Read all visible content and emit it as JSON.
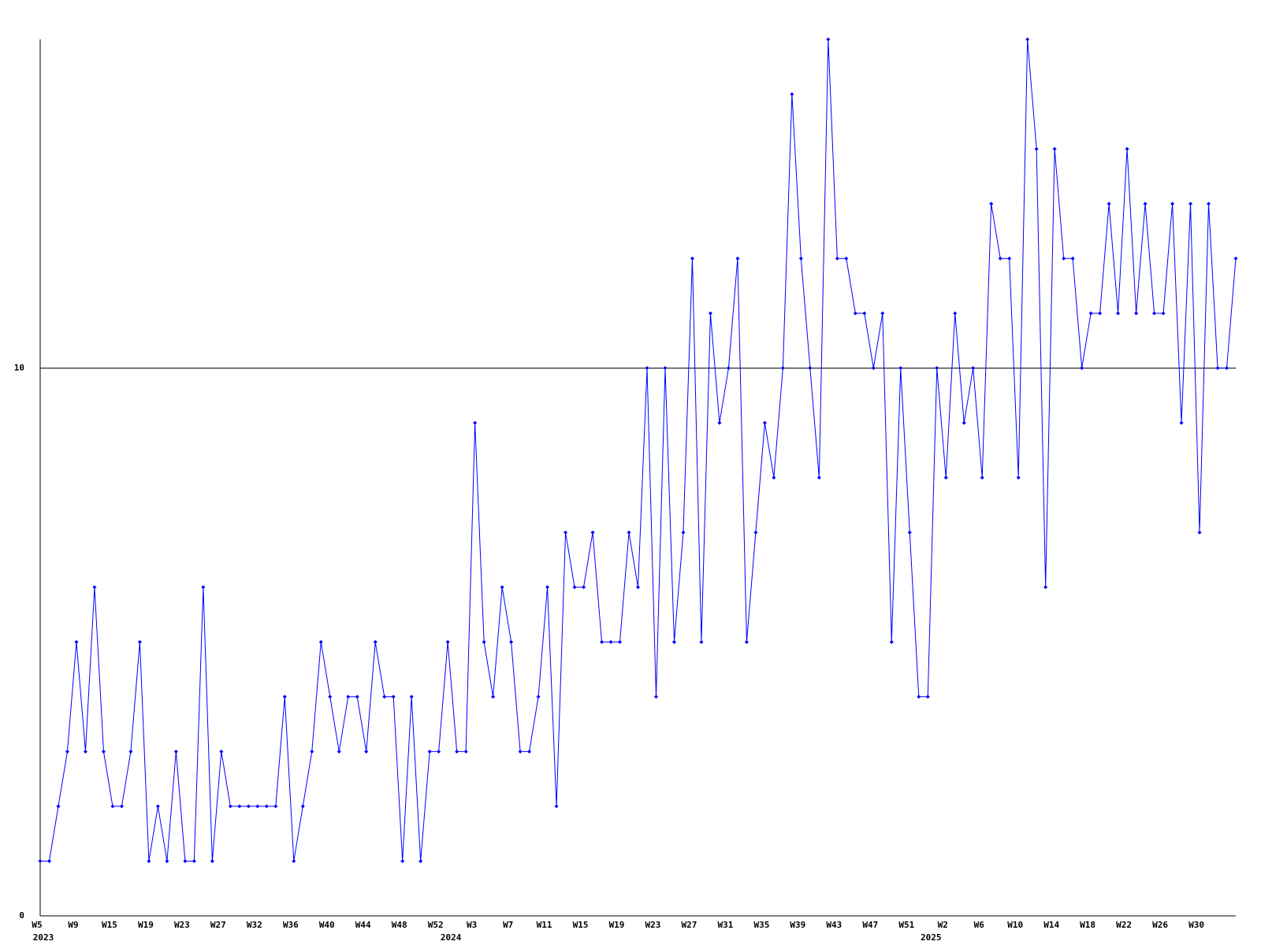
{
  "chart_data": {
    "type": "line",
    "categories": [
      "W5",
      null,
      null,
      null,
      "W9",
      null,
      null,
      null,
      "W15",
      null,
      null,
      null,
      "W19",
      null,
      null,
      null,
      "W23",
      null,
      null,
      null,
      "W27",
      null,
      null,
      null,
      "W32",
      null,
      null,
      null,
      "W36",
      null,
      null,
      null,
      "W40",
      null,
      null,
      null,
      "W44",
      null,
      null,
      null,
      "W48",
      null,
      null,
      null,
      "W52",
      null,
      null,
      null,
      "W3",
      null,
      null,
      null,
      "W7",
      null,
      null,
      null,
      "W11",
      null,
      null,
      null,
      "W15",
      null,
      null,
      null,
      "W19",
      null,
      null,
      null,
      "W23",
      null,
      null,
      null,
      "W27",
      null,
      null,
      null,
      "W31",
      null,
      null,
      null,
      "W35",
      null,
      null,
      null,
      "W39",
      null,
      null,
      null,
      "W43",
      null,
      null,
      null,
      "W47",
      null,
      null,
      null,
      "W51",
      null,
      null,
      null,
      "W2",
      null,
      null,
      null,
      "W6",
      null,
      null,
      null,
      "W10",
      null,
      null,
      null,
      "W14",
      null,
      null,
      null,
      "W18",
      null,
      null,
      null,
      "W22",
      null,
      null,
      null,
      "W26",
      null,
      null,
      null,
      "W30",
      null,
      null,
      null,
      null
    ],
    "category_years": [
      "2023",
      null,
      null,
      null,
      null,
      null,
      null,
      null,
      null,
      null,
      null,
      null,
      null,
      null,
      null,
      null,
      null,
      null,
      null,
      null,
      null,
      null,
      null,
      null,
      null,
      null,
      null,
      null,
      null,
      null,
      null,
      null,
      null,
      null,
      null,
      null,
      null,
      null,
      null,
      null,
      null,
      null,
      null,
      null,
      null,
      "2024",
      null,
      null,
      null,
      null,
      null,
      null,
      null,
      null,
      null,
      null,
      null,
      null,
      null,
      null,
      null,
      null,
      null,
      null,
      null,
      null,
      null,
      null,
      null,
      null,
      null,
      null,
      null,
      null,
      null,
      null,
      null,
      null,
      null,
      null,
      null,
      null,
      null,
      null,
      null,
      null,
      null,
      null,
      null,
      null,
      null,
      null,
      null,
      null,
      null,
      null,
      null,
      null,
      "2025",
      null,
      null,
      null,
      null,
      null,
      null,
      null,
      null,
      null,
      null,
      null,
      null,
      null,
      null,
      null,
      null,
      null,
      null,
      null,
      null,
      null,
      null,
      null,
      null,
      null,
      null,
      null,
      null,
      null,
      null,
      null,
      null,
      null,
      null
    ],
    "values": [
      1,
      1,
      2,
      3,
      5,
      3,
      6,
      3,
      2,
      2,
      3,
      5,
      1,
      2,
      1,
      3,
      1,
      1,
      6,
      1,
      3,
      2,
      2,
      2,
      2,
      2,
      2,
      4,
      1,
      2,
      3,
      5,
      4,
      3,
      4,
      4,
      3,
      5,
      4,
      4,
      1,
      4,
      1,
      3,
      3,
      5,
      3,
      3,
      9,
      5,
      4,
      6,
      5,
      3,
      3,
      4,
      6,
      2,
      7,
      6,
      6,
      7,
      5,
      5,
      5,
      7,
      6,
      10,
      4,
      10,
      5,
      7,
      12,
      5,
      11,
      9,
      10,
      12,
      5,
      7,
      9,
      8,
      10,
      15,
      12,
      10,
      8,
      16,
      12,
      12,
      11,
      11,
      10,
      11,
      5,
      10,
      7,
      4,
      4,
      10,
      8,
      11,
      9,
      10,
      8,
      13,
      12,
      12,
      8,
      16,
      14,
      6,
      14,
      12,
      12,
      10,
      11,
      11,
      13,
      11,
      14,
      11,
      13,
      11,
      11,
      13,
      9,
      13,
      7,
      13,
      10,
      10,
      12
    ],
    "color": "#0000ff",
    "ylim": [
      0,
      16
    ],
    "yticks": [
      0,
      10
    ],
    "grid": true
  }
}
